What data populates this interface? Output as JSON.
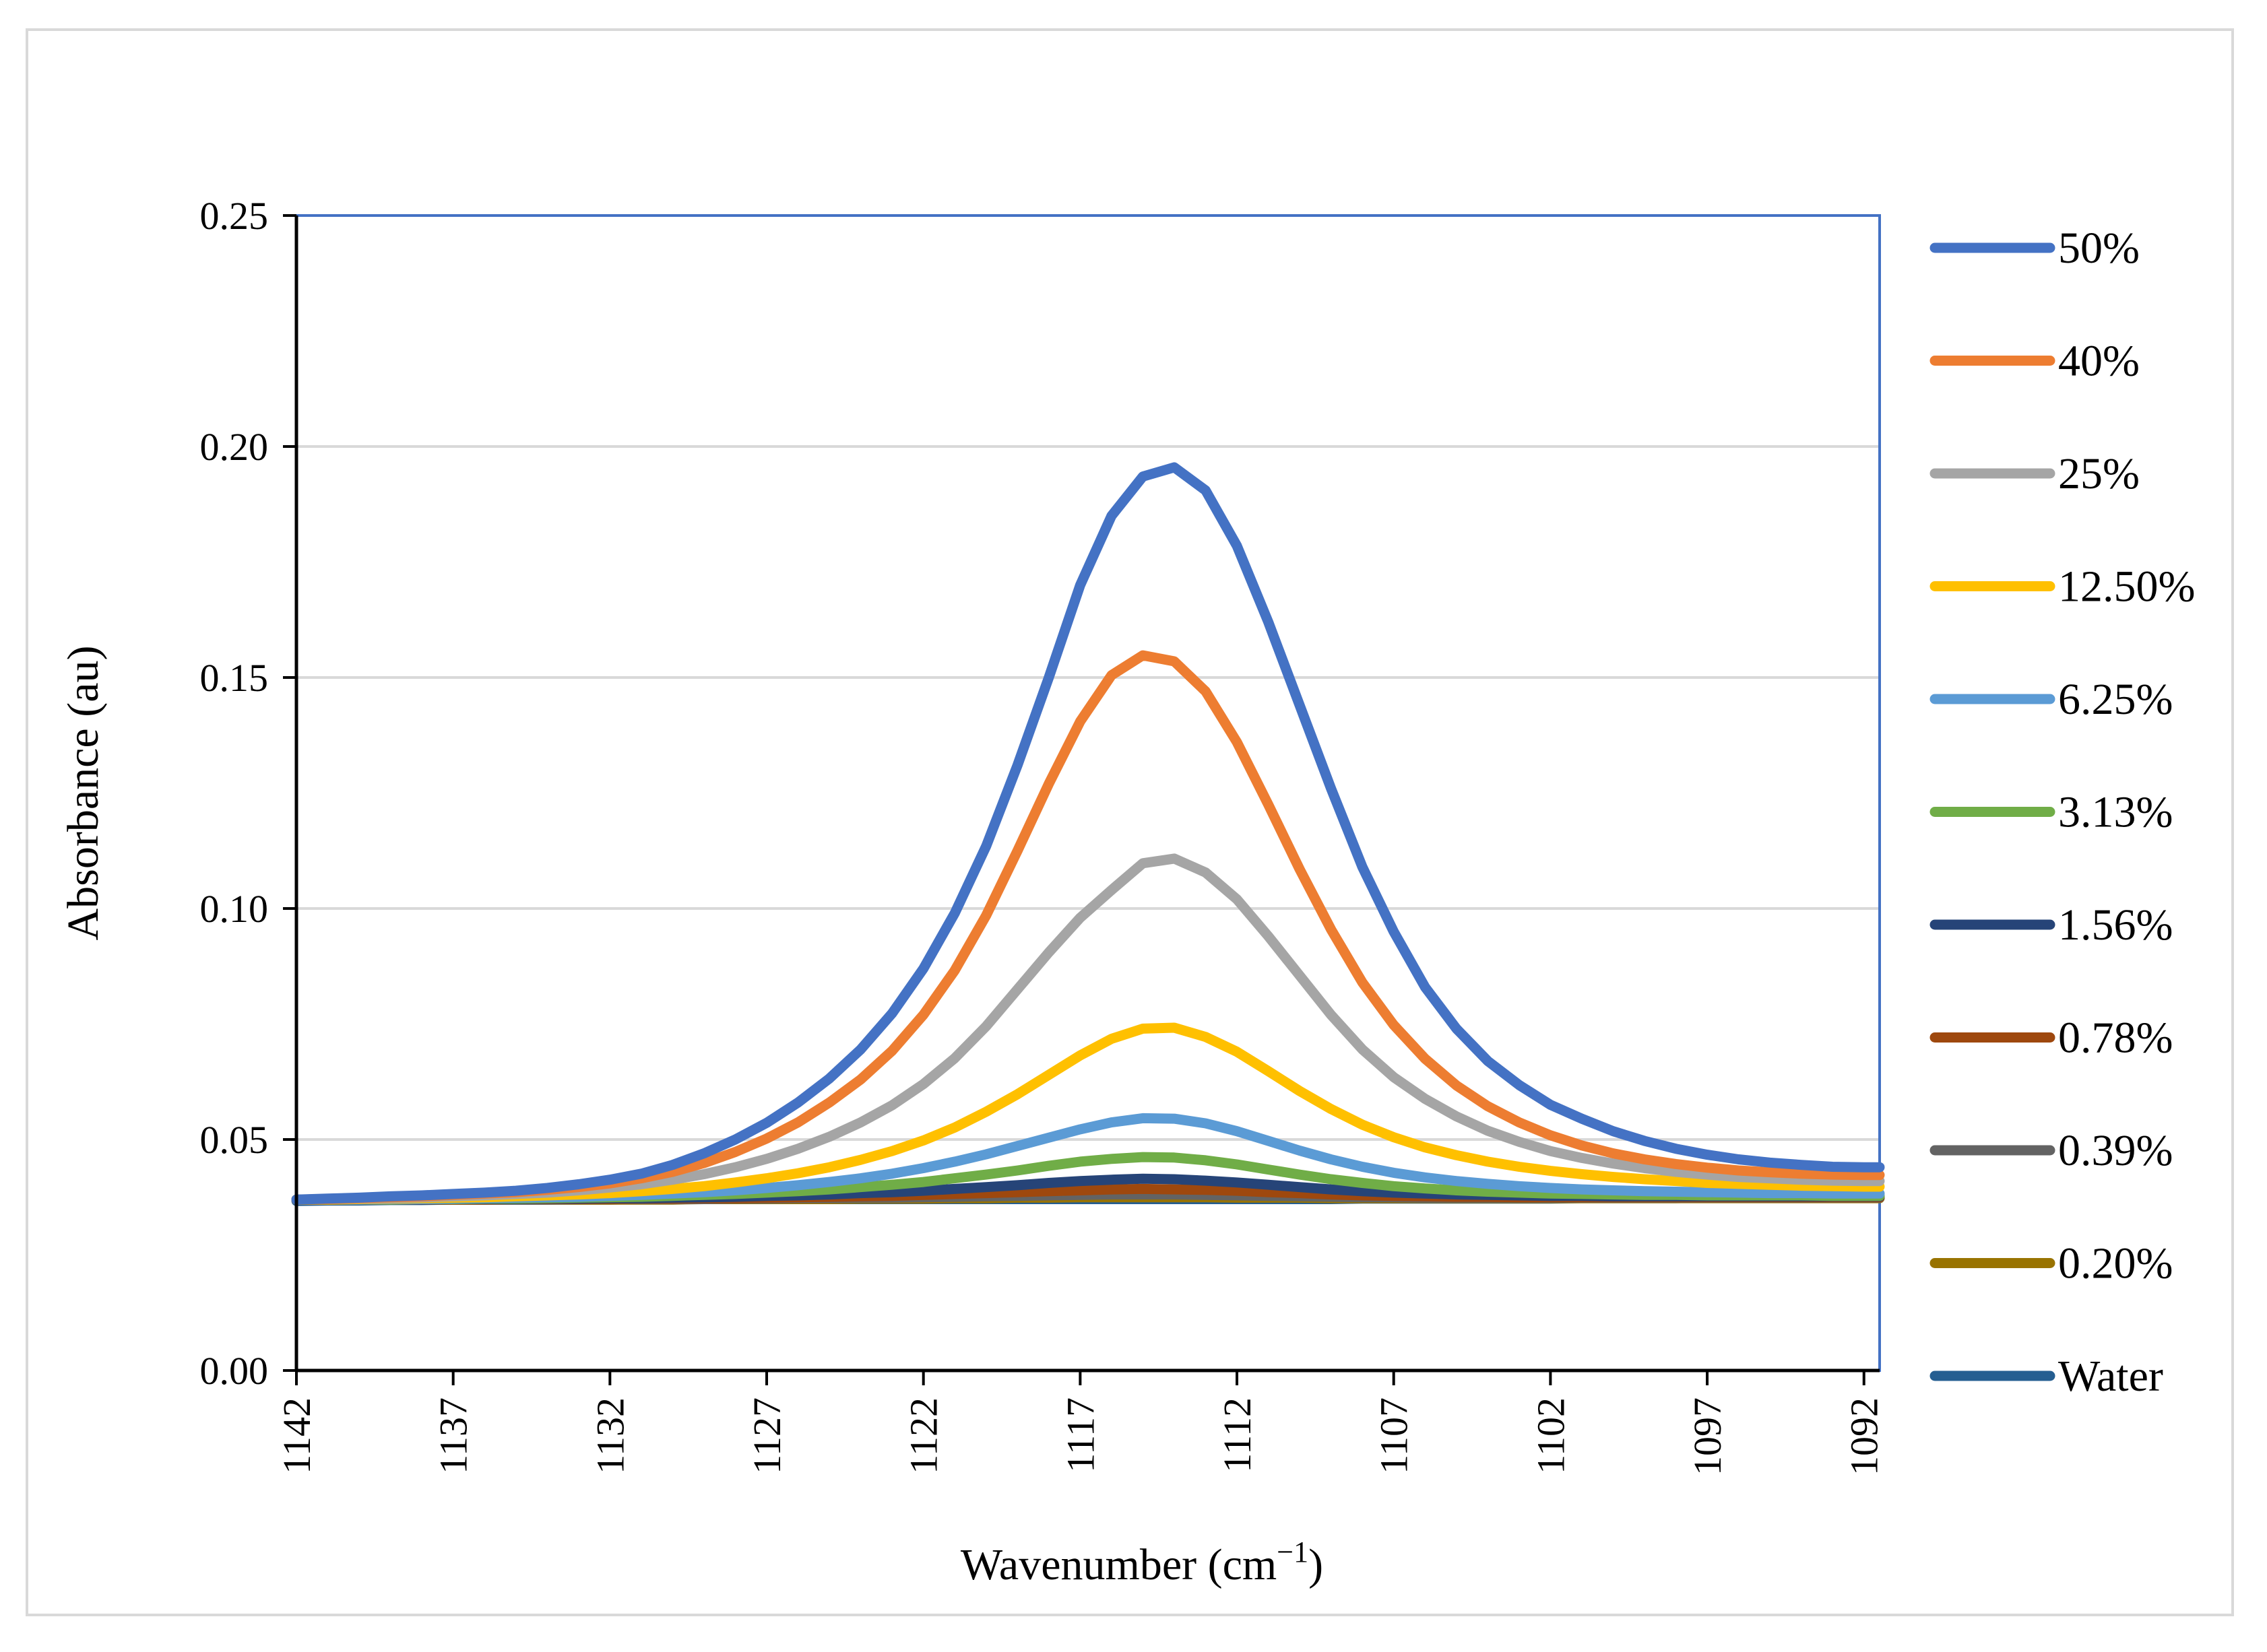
{
  "chart_data": {
    "type": "line",
    "title": "",
    "xlabel": "Wavenumber (cm",
    "xlabel_superscript": "−1",
    "xlabel_close": ")",
    "ylabel": "Absorbance (au)",
    "xlim": [
      1142,
      1091.5
    ],
    "ylim": [
      0,
      0.25
    ],
    "xticks": [
      "1142",
      "1137",
      "1132",
      "1127",
      "1122",
      "1117",
      "1112",
      "1107",
      "1102",
      "1097",
      "1092"
    ],
    "yticks": [
      "0.00",
      "0.05",
      "0.10",
      "0.15",
      "0.20",
      "0.25"
    ],
    "x": [
      1142,
      1141,
      1140,
      1139,
      1138,
      1137,
      1136,
      1135,
      1134,
      1133,
      1132,
      1131,
      1130,
      1129,
      1128,
      1127,
      1126,
      1125,
      1124,
      1123,
      1122,
      1121,
      1120,
      1119,
      1118,
      1117,
      1116,
      1115,
      1114,
      1113,
      1112,
      1111,
      1110,
      1109,
      1108,
      1107,
      1106,
      1105,
      1104,
      1103,
      1102,
      1101,
      1100,
      1099,
      1098,
      1097,
      1096,
      1095,
      1094,
      1093,
      1092,
      1091.5
    ],
    "series": [
      {
        "name": "50%",
        "color": "#4472c4",
        "values": [
          0.037,
          0.0372,
          0.0374,
          0.0377,
          0.0379,
          0.0382,
          0.0385,
          0.0389,
          0.0395,
          0.0403,
          0.0413,
          0.0426,
          0.0445,
          0.047,
          0.05,
          0.0536,
          0.058,
          0.0632,
          0.0695,
          0.0773,
          0.087,
          0.099,
          0.1135,
          0.131,
          0.15,
          0.17,
          0.185,
          0.1935,
          0.1955,
          0.1905,
          0.1785,
          0.162,
          0.144,
          0.126,
          0.109,
          0.095,
          0.083,
          0.074,
          0.067,
          0.0618,
          0.0575,
          0.0545,
          0.0518,
          0.0497,
          0.048,
          0.0467,
          0.0457,
          0.045,
          0.0445,
          0.0441,
          0.044,
          0.044
        ]
      },
      {
        "name": "40%",
        "color": "#ed7d31",
        "values": [
          0.037,
          0.0371,
          0.0373,
          0.0375,
          0.0377,
          0.038,
          0.0383,
          0.0386,
          0.0391,
          0.0397,
          0.0405,
          0.0416,
          0.043,
          0.0449,
          0.0473,
          0.0502,
          0.0537,
          0.058,
          0.063,
          0.0692,
          0.077,
          0.0866,
          0.0985,
          0.1125,
          0.127,
          0.1405,
          0.1505,
          0.1548,
          0.1535,
          0.147,
          0.136,
          0.1225,
          0.1085,
          0.0955,
          0.084,
          0.0748,
          0.0675,
          0.0617,
          0.0572,
          0.0537,
          0.0509,
          0.0487,
          0.047,
          0.0457,
          0.0447,
          0.0439,
          0.0433,
          0.0429,
          0.0426,
          0.0424,
          0.0423,
          0.0423
        ]
      },
      {
        "name": "25%",
        "color": "#a5a5a5",
        "values": [
          0.037,
          0.0371,
          0.0372,
          0.0373,
          0.0375,
          0.0377,
          0.0379,
          0.0382,
          0.0385,
          0.039,
          0.0396,
          0.0403,
          0.0413,
          0.0425,
          0.044,
          0.0458,
          0.048,
          0.0506,
          0.0537,
          0.0574,
          0.062,
          0.0676,
          0.0745,
          0.0825,
          0.0905,
          0.098,
          0.104,
          0.1098,
          0.1108,
          0.1078,
          0.102,
          0.094,
          0.0855,
          0.077,
          0.0695,
          0.0635,
          0.0588,
          0.055,
          0.0519,
          0.0495,
          0.0475,
          0.046,
          0.0448,
          0.0438,
          0.043,
          0.0424,
          0.0419,
          0.0416,
          0.0413,
          0.0411,
          0.041,
          0.041
        ]
      },
      {
        "name": "12.50%",
        "color": "#ffc000",
        "values": [
          0.037,
          0.037,
          0.0371,
          0.0372,
          0.0373,
          0.0374,
          0.0375,
          0.0377,
          0.0379,
          0.0381,
          0.0384,
          0.0388,
          0.0393,
          0.0399,
          0.0407,
          0.0416,
          0.0427,
          0.044,
          0.0456,
          0.0475,
          0.0498,
          0.0526,
          0.056,
          0.0598,
          0.064,
          0.0682,
          0.0718,
          0.074,
          0.0742,
          0.0722,
          0.069,
          0.0648,
          0.0605,
          0.0566,
          0.0532,
          0.0505,
          0.0483,
          0.0466,
          0.0452,
          0.0441,
          0.0432,
          0.0425,
          0.0419,
          0.0414,
          0.041,
          0.0406,
          0.0404,
          0.0402,
          0.04,
          0.0399,
          0.0398,
          0.0398
        ]
      },
      {
        "name": "6.25%",
        "color": "#5b9bd5",
        "values": [
          0.037,
          0.037,
          0.037,
          0.0371,
          0.0371,
          0.0372,
          0.0373,
          0.0374,
          0.0375,
          0.0376,
          0.0378,
          0.038,
          0.0383,
          0.0386,
          0.039,
          0.0395,
          0.0401,
          0.0408,
          0.0416,
          0.0426,
          0.0438,
          0.0452,
          0.0468,
          0.0486,
          0.0504,
          0.0522,
          0.0537,
          0.0546,
          0.0545,
          0.0535,
          0.0518,
          0.0497,
          0.0476,
          0.0457,
          0.0441,
          0.0428,
          0.0418,
          0.041,
          0.0404,
          0.0399,
          0.0395,
          0.0392,
          0.039,
          0.0388,
          0.0387,
          0.0386,
          0.0385,
          0.0384,
          0.0384,
          0.0383,
          0.0383,
          0.0383
        ]
      },
      {
        "name": "3.13%",
        "color": "#70ad47",
        "values": [
          0.037,
          0.037,
          0.037,
          0.037,
          0.0371,
          0.0371,
          0.0372,
          0.0372,
          0.0373,
          0.0374,
          0.0375,
          0.0376,
          0.0378,
          0.038,
          0.0382,
          0.0385,
          0.0388,
          0.0392,
          0.0397,
          0.0402,
          0.0408,
          0.0416,
          0.0424,
          0.0433,
          0.0443,
          0.0452,
          0.0458,
          0.0462,
          0.0461,
          0.0455,
          0.0446,
          0.0435,
          0.0424,
          0.0414,
          0.0406,
          0.0399,
          0.0394,
          0.039,
          0.0387,
          0.0385,
          0.0383,
          0.0382,
          0.0381,
          0.038,
          0.038,
          0.0379,
          0.0379,
          0.0379,
          0.0379,
          0.0378,
          0.0378,
          0.0378
        ]
      },
      {
        "name": "1.56%",
        "color": "#264478",
        "values": [
          0.037,
          0.037,
          0.037,
          0.037,
          0.037,
          0.0371,
          0.0371,
          0.0371,
          0.0372,
          0.0372,
          0.0373,
          0.0373,
          0.0374,
          0.0375,
          0.0376,
          0.0378,
          0.0379,
          0.0381,
          0.0384,
          0.0386,
          0.0389,
          0.0393,
          0.0397,
          0.0401,
          0.0406,
          0.041,
          0.0413,
          0.0415,
          0.0414,
          0.0411,
          0.0407,
          0.0402,
          0.0397,
          0.0392,
          0.0388,
          0.0385,
          0.0383,
          0.0381,
          0.038,
          0.0379,
          0.0378,
          0.0378,
          0.0377,
          0.0377,
          0.0377,
          0.0377,
          0.0377,
          0.0377,
          0.0377,
          0.0377,
          0.0377,
          0.0377
        ]
      },
      {
        "name": "0.78%",
        "color": "#9e480e",
        "values": [
          0.037,
          0.037,
          0.037,
          0.037,
          0.037,
          0.037,
          0.037,
          0.0371,
          0.0371,
          0.0371,
          0.0371,
          0.0372,
          0.0372,
          0.0373,
          0.0373,
          0.0374,
          0.0375,
          0.0376,
          0.0377,
          0.0378,
          0.038,
          0.0382,
          0.0384,
          0.0386,
          0.0388,
          0.039,
          0.0392,
          0.0393,
          0.0392,
          0.0391,
          0.0389,
          0.0386,
          0.0384,
          0.0381,
          0.0379,
          0.0378,
          0.0377,
          0.0376,
          0.0376,
          0.0375,
          0.0375,
          0.0375,
          0.0375,
          0.0375,
          0.0375,
          0.0375,
          0.0375,
          0.0375,
          0.0375,
          0.0375,
          0.0375,
          0.0375
        ]
      },
      {
        "name": "0.39%",
        "color": "#636363",
        "values": [
          0.037,
          0.037,
          0.037,
          0.037,
          0.037,
          0.037,
          0.037,
          0.037,
          0.037,
          0.0371,
          0.0371,
          0.0371,
          0.0371,
          0.0371,
          0.0372,
          0.0372,
          0.0373,
          0.0373,
          0.0374,
          0.0374,
          0.0375,
          0.0376,
          0.0377,
          0.0378,
          0.0379,
          0.038,
          0.0381,
          0.0381,
          0.0381,
          0.038,
          0.0379,
          0.0378,
          0.0377,
          0.0376,
          0.0375,
          0.0375,
          0.0374,
          0.0374,
          0.0374,
          0.0374,
          0.0374,
          0.0374,
          0.0374,
          0.0374,
          0.0374,
          0.0374,
          0.0374,
          0.0374,
          0.0374,
          0.0374,
          0.0374,
          0.0374
        ]
      },
      {
        "name": "0.20%",
        "color": "#997300",
        "values": [
          0.037,
          0.037,
          0.037,
          0.037,
          0.037,
          0.037,
          0.037,
          0.037,
          0.037,
          0.037,
          0.037,
          0.037,
          0.037,
          0.0371,
          0.0371,
          0.0371,
          0.0371,
          0.0371,
          0.0372,
          0.0372,
          0.0372,
          0.0373,
          0.0373,
          0.0374,
          0.0374,
          0.0375,
          0.0375,
          0.0375,
          0.0375,
          0.0375,
          0.0374,
          0.0374,
          0.0374,
          0.0373,
          0.0373,
          0.0373,
          0.0373,
          0.0373,
          0.0373,
          0.0373,
          0.0373,
          0.0373,
          0.0373,
          0.0373,
          0.0373,
          0.0373,
          0.0373,
          0.0373,
          0.0373,
          0.0373,
          0.0373,
          0.0373
        ]
      },
      {
        "name": "Water",
        "color": "#255e91",
        "values": [
          0.0367,
          0.0368,
          0.0368,
          0.0369,
          0.0369,
          0.037,
          0.037,
          0.037,
          0.037,
          0.037,
          0.037,
          0.0371,
          0.0371,
          0.0371,
          0.0371,
          0.0371,
          0.0371,
          0.0371,
          0.0371,
          0.0371,
          0.0371,
          0.0371,
          0.0371,
          0.0371,
          0.0371,
          0.0371,
          0.0371,
          0.0371,
          0.0371,
          0.0371,
          0.0371,
          0.0371,
          0.0371,
          0.0371,
          0.0372,
          0.0372,
          0.0372,
          0.0372,
          0.0372,
          0.0372,
          0.0372,
          0.0373,
          0.0373,
          0.0373,
          0.0373,
          0.0374,
          0.0374,
          0.0374,
          0.0375,
          0.0375,
          0.0376,
          0.0376
        ]
      }
    ]
  }
}
